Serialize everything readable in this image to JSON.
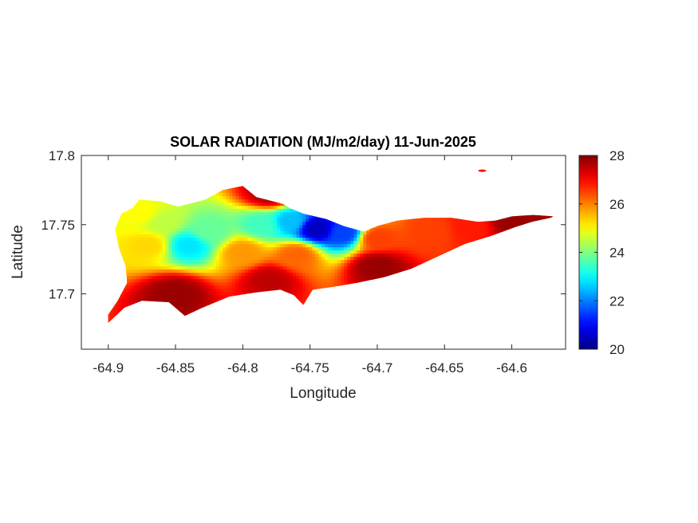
{
  "figure": {
    "title": "SOLAR RADIATION (MJ/m2/day) 11-Jun-2025",
    "xlabel": "Longitude",
    "ylabel": "Latitude"
  },
  "chart_data": {
    "type": "heatmap",
    "title": "SOLAR RADIATION (MJ/m2/day) 11-Jun-2025",
    "xlabel": "Longitude",
    "ylabel": "Latitude",
    "xlim": [
      -64.92,
      -64.56
    ],
    "ylim": [
      17.66,
      17.8
    ],
    "x_ticks": [
      -64.9,
      -64.85,
      -64.8,
      -64.75,
      -64.7,
      -64.65,
      -64.6
    ],
    "x_tick_labels": [
      "-64.9",
      "-64.85",
      "-64.8",
      "-64.75",
      "-64.7",
      "-64.65",
      "-64.6"
    ],
    "y_ticks": [
      17.7,
      17.75,
      17.8
    ],
    "y_tick_labels": [
      "17.7",
      "17.75",
      "17.8"
    ],
    "colorbar": {
      "colormap": "jet",
      "min": 20,
      "max": 28,
      "ticks": [
        20,
        22,
        24,
        26,
        28
      ],
      "tick_labels": [
        "20",
        "22",
        "24",
        "26",
        "28"
      ]
    },
    "grid": false,
    "island_outline": [
      [
        -64.9,
        17.679
      ],
      [
        -64.888,
        17.69
      ],
      [
        -64.875,
        17.695
      ],
      [
        -64.855,
        17.694
      ],
      [
        -64.843,
        17.684
      ],
      [
        -64.83,
        17.69
      ],
      [
        -64.81,
        17.698
      ],
      [
        -64.79,
        17.701
      ],
      [
        -64.772,
        17.703
      ],
      [
        -64.762,
        17.699
      ],
      [
        -64.755,
        17.692
      ],
      [
        -64.748,
        17.703
      ],
      [
        -64.733,
        17.705
      ],
      [
        -64.715,
        17.708
      ],
      [
        -64.695,
        17.712
      ],
      [
        -64.675,
        17.718
      ],
      [
        -64.655,
        17.727
      ],
      [
        -64.635,
        17.736
      ],
      [
        -64.615,
        17.742
      ],
      [
        -64.598,
        17.748
      ],
      [
        -64.585,
        17.752
      ],
      [
        -64.571,
        17.755
      ],
      [
        -64.569,
        17.756
      ],
      [
        -64.584,
        17.757
      ],
      [
        -64.6,
        17.756
      ],
      [
        -64.612,
        17.753
      ],
      [
        -64.625,
        17.752
      ],
      [
        -64.645,
        17.755
      ],
      [
        -64.665,
        17.755
      ],
      [
        -64.685,
        17.753
      ],
      [
        -64.7,
        17.749
      ],
      [
        -64.71,
        17.745
      ],
      [
        -64.725,
        17.749
      ],
      [
        -64.738,
        17.754
      ],
      [
        -64.755,
        17.758
      ],
      [
        -64.765,
        17.762
      ],
      [
        -64.77,
        17.765
      ],
      [
        -64.79,
        17.77
      ],
      [
        -64.8,
        17.778
      ],
      [
        -64.815,
        17.775
      ],
      [
        -64.828,
        17.768
      ],
      [
        -64.848,
        17.763
      ],
      [
        -64.862,
        17.767
      ],
      [
        -64.877,
        17.768
      ],
      [
        -64.882,
        17.762
      ],
      [
        -64.89,
        17.758
      ],
      [
        -64.895,
        17.747
      ],
      [
        -64.892,
        17.733
      ],
      [
        -64.887,
        17.72
      ],
      [
        -64.886,
        17.708
      ],
      [
        -64.893,
        17.695
      ],
      [
        -64.9,
        17.685
      ]
    ],
    "islet": {
      "lon": -64.622,
      "lat": 17.789,
      "value": 27
    },
    "field_hotspots": [
      {
        "lon": -64.745,
        "lat": 17.747,
        "value": 20.5
      },
      {
        "lon": -64.725,
        "lat": 17.744,
        "value": 21.5
      },
      {
        "lon": -64.765,
        "lat": 17.752,
        "value": 22.5
      },
      {
        "lon": -64.785,
        "lat": 17.75,
        "value": 23.5
      },
      {
        "lon": -64.84,
        "lat": 17.735,
        "value": 22.8
      },
      {
        "lon": -64.825,
        "lat": 17.745,
        "value": 23.8
      },
      {
        "lon": -64.86,
        "lat": 17.752,
        "value": 24.5
      },
      {
        "lon": -64.875,
        "lat": 17.758,
        "value": 25
      },
      {
        "lon": -64.87,
        "lat": 17.735,
        "value": 25.3
      },
      {
        "lon": -64.8,
        "lat": 17.73,
        "value": 25.8
      },
      {
        "lon": -64.76,
        "lat": 17.728,
        "value": 26.2
      },
      {
        "lon": -64.7,
        "lat": 17.74,
        "value": 26.5
      },
      {
        "lon": -64.66,
        "lat": 17.745,
        "value": 26.5
      },
      {
        "lon": -64.63,
        "lat": 17.748,
        "value": 26.8
      },
      {
        "lon": -64.85,
        "lat": 17.7,
        "value": 27.8
      },
      {
        "lon": -64.78,
        "lat": 17.71,
        "value": 27.5
      },
      {
        "lon": -64.7,
        "lat": 17.72,
        "value": 27.8
      },
      {
        "lon": -64.6,
        "lat": 17.752,
        "value": 27.8
      },
      {
        "lon": -64.78,
        "lat": 17.772,
        "value": 27.6
      }
    ],
    "background_value": 27.2
  }
}
